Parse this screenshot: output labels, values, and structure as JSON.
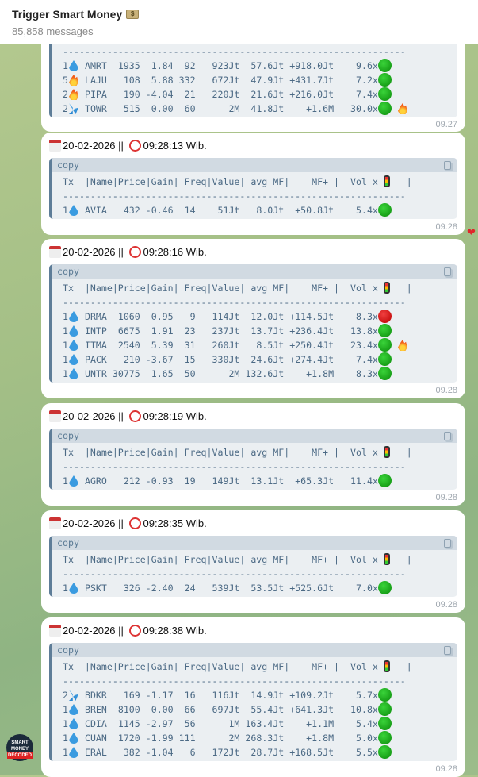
{
  "header": {
    "title": "Trigger Smart Money",
    "subtitle": "85,858 messages",
    "title_icon": "money-bag-icon"
  },
  "copy_label": "copy",
  "table_header": "Tx  |Name|Price|Gain| Freq|Value| avg MF|    MF+ |  Vol x ",
  "table_header_end": "   |",
  "dash": "--------------------------------------------------------------",
  "messages": [
    {
      "partial": true,
      "time": "09.27",
      "rows": [
        {
          "tx": "1",
          "icon": "drop",
          "text": " AMRT  1935  1.84  92   923Jt  57.6Jt +918.0Jt    9.6x",
          "signal": "green"
        },
        {
          "tx": "5",
          "icon": "fire",
          "text": " LAJU   108  5.88 332   672Jt  47.9Jt +431.7Jt    7.2x",
          "signal": "green"
        },
        {
          "tx": "2",
          "icon": "fire",
          "text": " PIPA   190 -4.04  21   220Jt  21.6Jt +216.0Jt    7.4x",
          "signal": "green"
        },
        {
          "tx": "2",
          "icon": "sweat",
          "text": " TOWR   515  0.00  60      2M  41.8Jt    +1.6M   30.0x",
          "signal": "green",
          "extra": "fire"
        }
      ]
    },
    {
      "date": "20-02-2026",
      "sep": " || ",
      "clock": "09:28:13 Wib.",
      "time": "09.28",
      "rows": [
        {
          "tx": "1",
          "icon": "drop",
          "text": " AVIA   432 -0.46  14    51Jt   8.0Jt  +50.8Jt    5.4x",
          "signal": "green"
        }
      ]
    },
    {
      "date": "20-02-2026",
      "sep": " || ",
      "clock": "09:28:16 Wib.",
      "time": "09.28",
      "rows": [
        {
          "tx": "1",
          "icon": "drop",
          "text": " DRMA  1060  0.95   9   114Jt  12.0Jt +114.5Jt    8.3x",
          "signal": "red"
        },
        {
          "tx": "1",
          "icon": "drop",
          "text": " INTP  6675  1.91  23   237Jt  13.7Jt +236.4Jt   13.8x",
          "signal": "green"
        },
        {
          "tx": "1",
          "icon": "drop",
          "text": " ITMA  2540  5.39  31   260Jt   8.5Jt +250.4Jt   23.4x",
          "signal": "green",
          "extra": "fire"
        },
        {
          "tx": "1",
          "icon": "drop",
          "text": " PACK   210 -3.67  15   330Jt  24.6Jt +274.4Jt    7.4x",
          "signal": "green"
        },
        {
          "tx": "1",
          "icon": "drop",
          "text": " UNTR 30775  1.65  50      2M 132.6Jt    +1.8M    8.3x",
          "signal": "green"
        }
      ]
    },
    {
      "date": "20-02-2026",
      "sep": " || ",
      "clock": "09:28:19 Wib.",
      "time": "09.28",
      "rows": [
        {
          "tx": "1",
          "icon": "drop",
          "text": " AGRO   212 -0.93  19   149Jt  13.1Jt  +65.3Jt   11.4x",
          "signal": "green"
        }
      ]
    },
    {
      "date": "20-02-2026",
      "sep": " || ",
      "clock": "09:28:35 Wib.",
      "time": "09.28",
      "rows": [
        {
          "tx": "1",
          "icon": "drop",
          "text": " PSKT   326 -2.40  24   539Jt  53.5Jt +525.6Jt    7.0x",
          "signal": "green"
        }
      ]
    },
    {
      "date": "20-02-2026",
      "sep": " || ",
      "clock": "09:28:38 Wib.",
      "time": "09.28",
      "rows": [
        {
          "tx": "2",
          "icon": "sweat",
          "text": " BDKR   169 -1.17  16   116Jt  14.9Jt +109.2Jt    5.7x",
          "signal": "green"
        },
        {
          "tx": "1",
          "icon": "drop",
          "text": " BREN  8100  0.00  66   697Jt  55.4Jt +641.3Jt   10.8x",
          "signal": "green"
        },
        {
          "tx": "1",
          "icon": "drop",
          "text": " CDIA  1145 -2.97  56      1M 163.4Jt    +1.1M    5.4x",
          "signal": "green"
        },
        {
          "tx": "1",
          "icon": "drop",
          "text": " CUAN  1720 -1.99 111      2M 268.3Jt    +1.8M    5.0x",
          "signal": "green"
        },
        {
          "tx": "1",
          "icon": "drop",
          "text": " ERAL   382 -1.04   6   172Jt  28.7Jt +168.5Jt    5.5x",
          "signal": "green"
        }
      ]
    }
  ],
  "reaction": "heart-icon",
  "avatar_text": {
    "line1": "SMART",
    "line2": "MONEY",
    "line3": "DECODED"
  }
}
